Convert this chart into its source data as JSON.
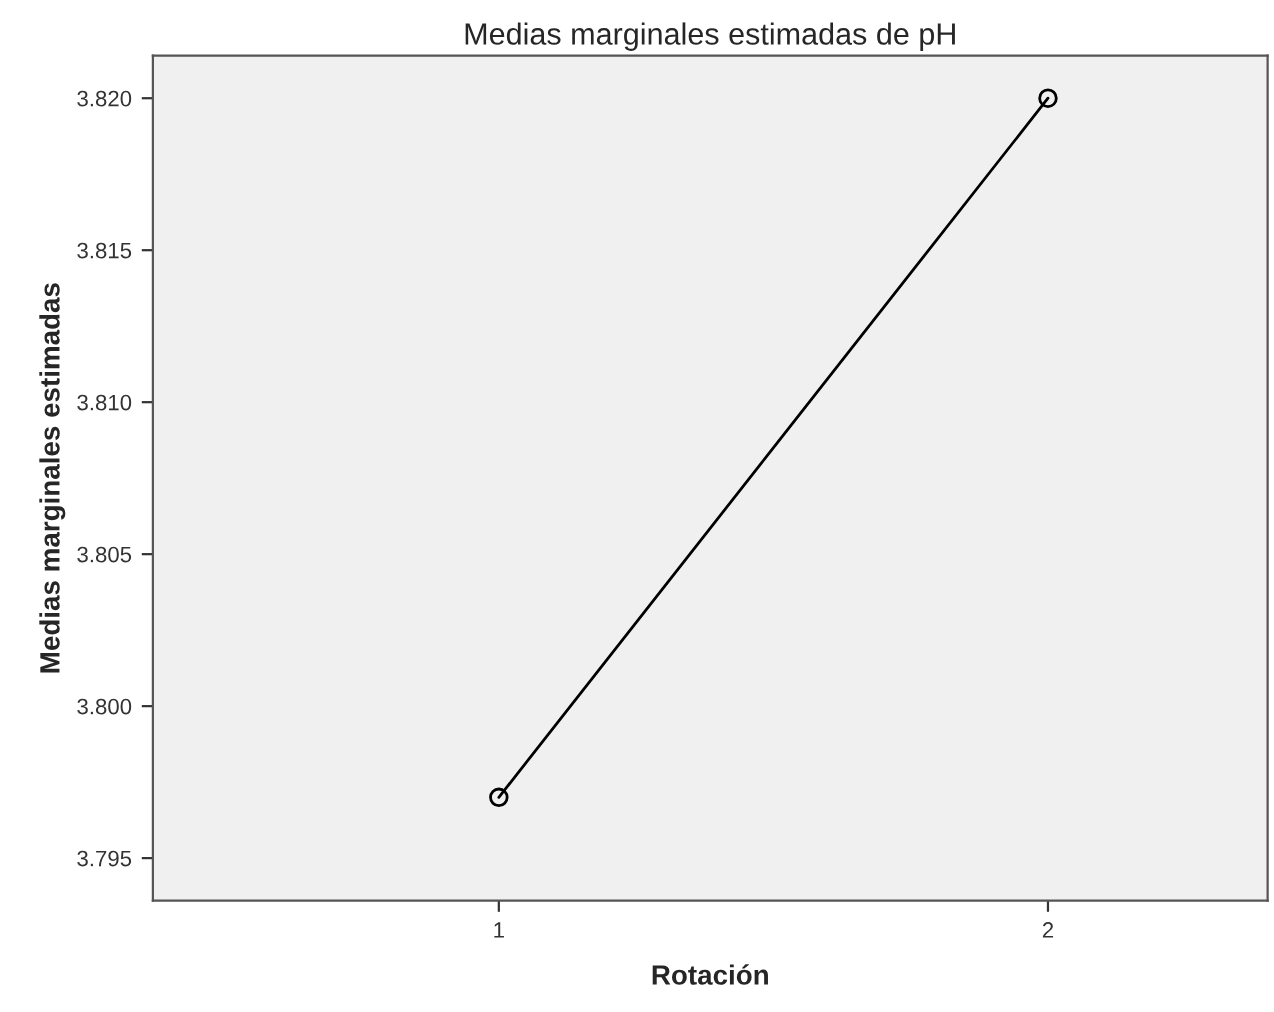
{
  "chart_data": {
    "type": "line",
    "title": "Medias marginales estimadas de pH",
    "xlabel": "Rotación",
    "ylabel": "Medias marginales estimadas",
    "categories": [
      "1",
      "2"
    ],
    "series": [
      {
        "color": "#000000",
        "values": [
          3.797,
          3.82
        ]
      }
    ],
    "ylim": [
      3.7936,
      3.8214
    ],
    "yticks": [
      {
        "value": 3.795,
        "label": "3.795"
      },
      {
        "value": 3.8,
        "label": "3.800"
      },
      {
        "value": 3.805,
        "label": "3.805"
      },
      {
        "value": 3.81,
        "label": "3.810"
      },
      {
        "value": 3.815,
        "label": "3.815"
      },
      {
        "value": 3.82,
        "label": "3.820"
      }
    ],
    "grid": false,
    "marker": "circle",
    "line_style": "solid"
  }
}
